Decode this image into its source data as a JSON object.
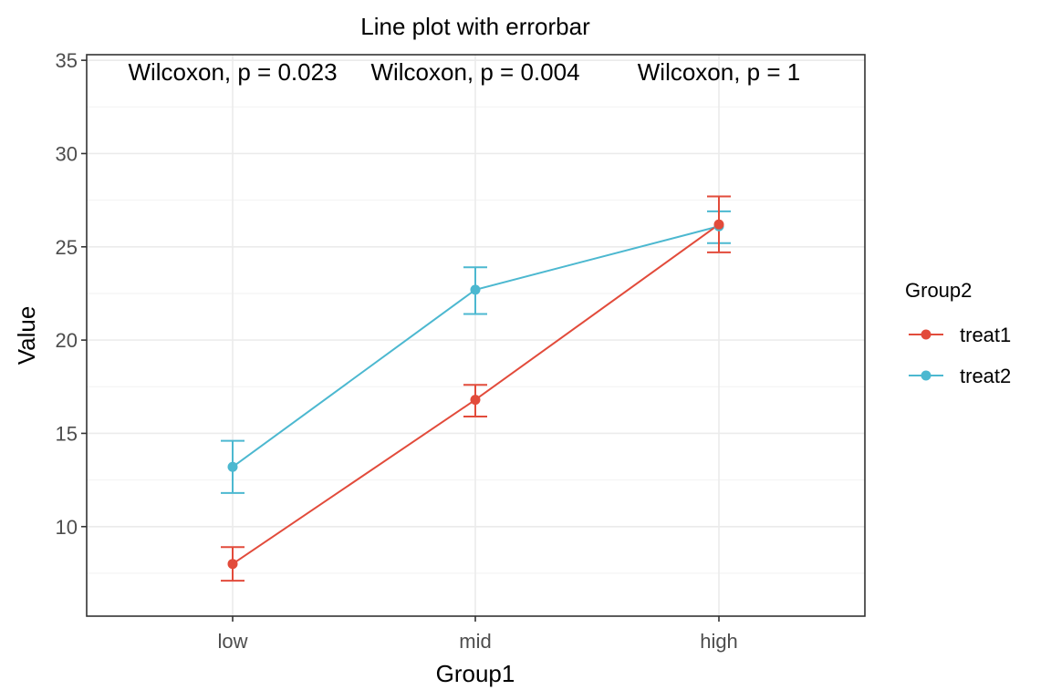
{
  "chart_data": {
    "type": "line",
    "title": "Line plot with errorbar",
    "xlabel": "Group1",
    "ylabel": "Value",
    "categories": [
      "low",
      "mid",
      "high"
    ],
    "ylim": [
      5.2,
      35.3
    ],
    "yticks": [
      10,
      15,
      20,
      25,
      30,
      35
    ],
    "grid": true,
    "legend": {
      "title": "Group2",
      "placement": "right"
    },
    "series": [
      {
        "name": "treat1",
        "color": "#e24b3b",
        "values": [
          8.0,
          16.8,
          26.2
        ],
        "err_low": [
          7.1,
          15.9,
          24.7
        ],
        "err_high": [
          8.9,
          17.6,
          27.7
        ]
      },
      {
        "name": "treat2",
        "color": "#4cb8d0",
        "values": [
          13.2,
          22.7,
          26.1
        ],
        "err_low": [
          11.8,
          21.4,
          25.2
        ],
        "err_high": [
          14.6,
          23.9,
          26.9
        ]
      }
    ],
    "annotations": [
      {
        "category": "low",
        "text": "Wilcoxon, p = 0.023"
      },
      {
        "category": "mid",
        "text": "Wilcoxon, p = 0.004"
      },
      {
        "category": "high",
        "text": "Wilcoxon, p = 1"
      }
    ]
  }
}
